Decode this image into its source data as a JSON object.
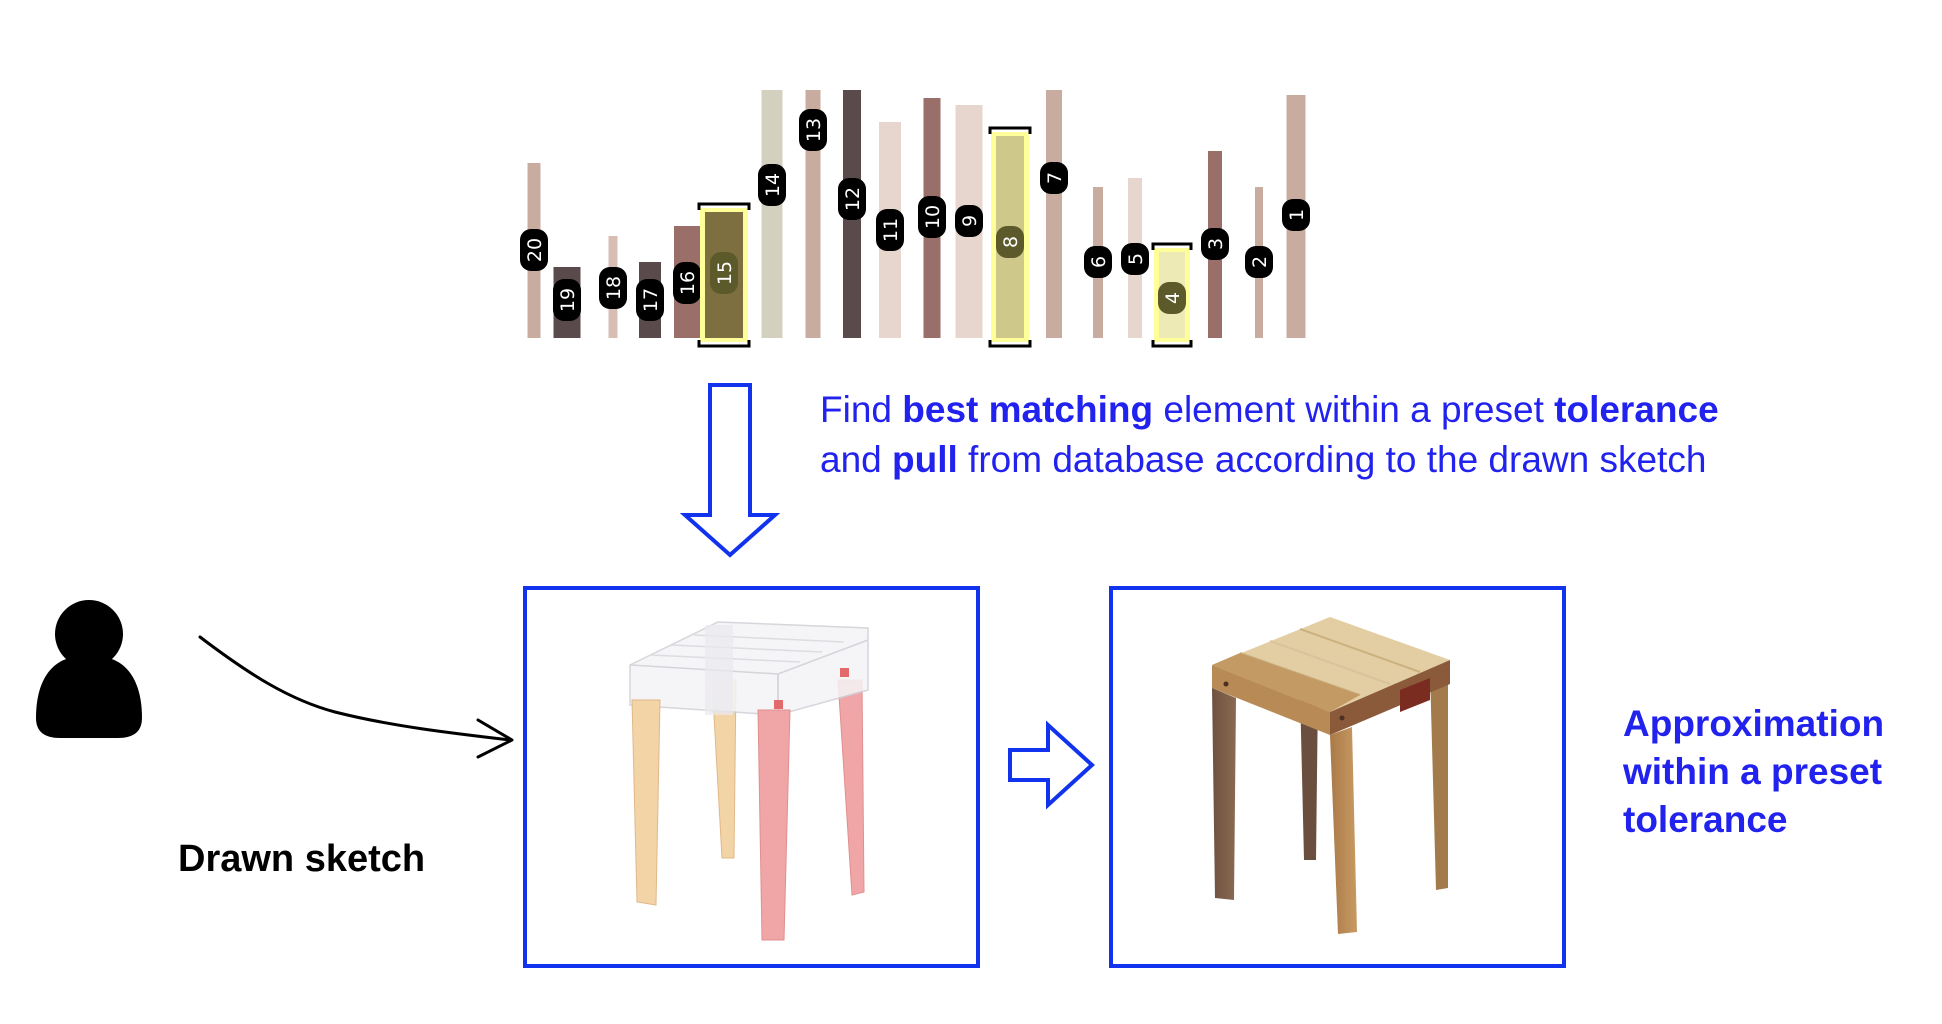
{
  "database": {
    "elements": [
      {
        "label": "20",
        "color": "#c9aca0",
        "highlight": false
      },
      {
        "label": "19",
        "color": "#5b4a4c",
        "highlight": false
      },
      {
        "label": "18",
        "color": "#d8bdb2",
        "highlight": false
      },
      {
        "label": "17",
        "color": "#5b4a4c",
        "highlight": false
      },
      {
        "label": "16",
        "color": "#9a6e69",
        "highlight": false
      },
      {
        "label": "15",
        "color": "#7d6f3f",
        "highlight": true
      },
      {
        "label": "14",
        "color": "#d4d0c0",
        "highlight": false
      },
      {
        "label": "13",
        "color": "#c9aca0",
        "highlight": false
      },
      {
        "label": "12",
        "color": "#5b4a4c",
        "highlight": false
      },
      {
        "label": "11",
        "color": "#e7d6cd",
        "highlight": false
      },
      {
        "label": "10",
        "color": "#9a6e69",
        "highlight": false
      },
      {
        "label": "9",
        "color": "#e7d6cd",
        "highlight": false
      },
      {
        "label": "8",
        "color": "#cec98a",
        "highlight": true
      },
      {
        "label": "7",
        "color": "#c9aca0",
        "highlight": false
      },
      {
        "label": "6",
        "color": "#c9aca0",
        "highlight": false
      },
      {
        "label": "5",
        "color": "#e7d6cd",
        "highlight": false
      },
      {
        "label": "4",
        "color": "#eeeab6",
        "highlight": true
      },
      {
        "label": "3",
        "color": "#9a6e69",
        "highlight": false
      },
      {
        "label": "2",
        "color": "#c9aca0",
        "highlight": false
      },
      {
        "label": "1",
        "color": "#c9aca0",
        "highlight": false
      }
    ]
  },
  "description": {
    "line1": {
      "a": "Find ",
      "b": "best matching",
      "c": " element within a preset ",
      "d": "tolerance"
    },
    "line2": {
      "a": "and ",
      "b": "pull",
      "c": " from database according to the drawn sketch"
    }
  },
  "sketch_label": "Drawn sketch",
  "approximation": {
    "line1": "Approximation",
    "line2": "within a preset",
    "line3": "tolerance"
  },
  "colors": {
    "accent_blue": "#1133ee",
    "text_blue": "#2222ee",
    "highlight_yellow": "#ffff99",
    "sketch_red": "#f0a6a6",
    "sketch_wood": "#f3d4a6"
  }
}
